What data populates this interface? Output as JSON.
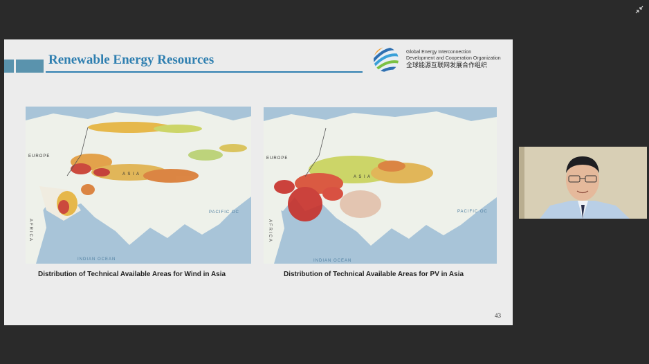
{
  "slide": {
    "title": "Renewable Energy Resources",
    "org_name_en_line1": "Global Energy Interconnection",
    "org_name_en_line2": "Development and Cooperation Organization",
    "org_name_cn": "全球能源互联网发展合作组织",
    "page_number": "43",
    "colors": {
      "accent": "#2f7fb0",
      "bar": "#5a93ad"
    }
  },
  "maps": {
    "wind": {
      "caption": "Distribution of Technical Available Areas for Wind in Asia",
      "labels": {
        "europe": "EUROPE",
        "asia": "A S I A",
        "africa": "AFRICA",
        "pacific": "PACIFIC OC",
        "indian": "INDIAN OCEAN"
      }
    },
    "pv": {
      "caption": "Distribution of Technical Available Areas for PV in Asia",
      "labels": {
        "europe": "EUROPE",
        "asia": "A S I A",
        "africa": "AFRICA",
        "pacific": "PACIFIC OC",
        "indian": "INDIAN OCEAN"
      }
    }
  },
  "window": {
    "exit_fullscreen_icon": "collapse-icon"
  }
}
